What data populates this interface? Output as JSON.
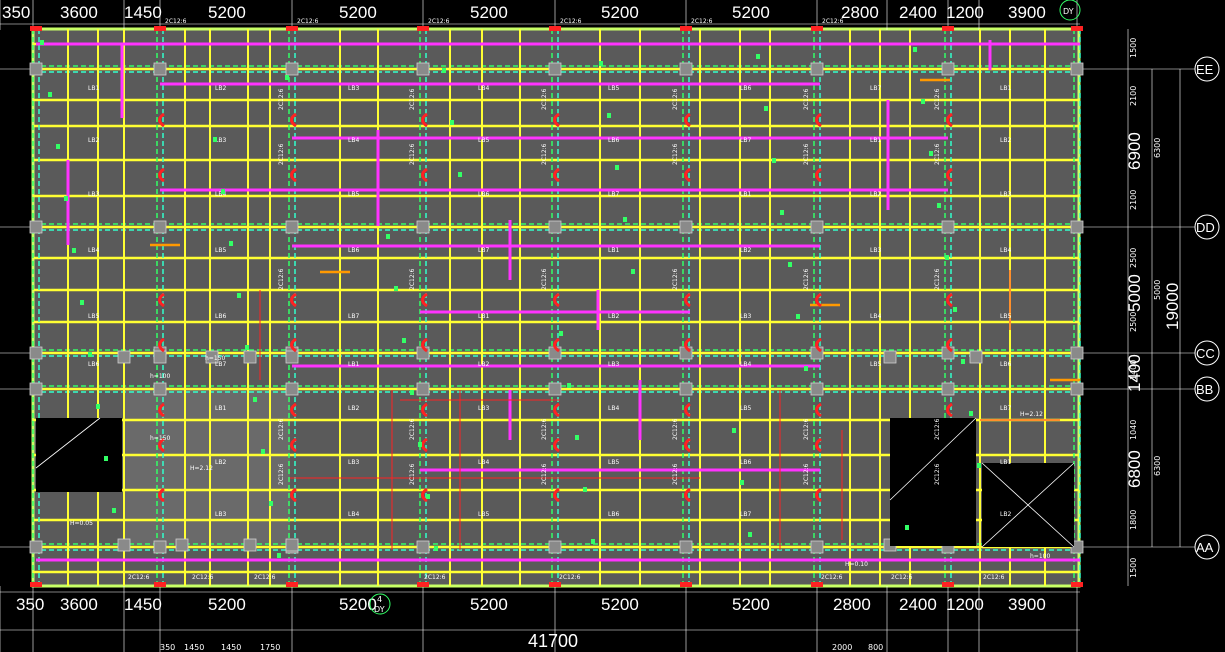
{
  "drawing": {
    "top_dims": [
      "350",
      "3600",
      "1450",
      "5200",
      "5200",
      "5200",
      "5200",
      "5200",
      "2800",
      "2400",
      "1200",
      "3900"
    ],
    "bottom_dims": [
      "350",
      "3600",
      "1450",
      "5200",
      "5200",
      "5200",
      "5200",
      "5200",
      "2800",
      "2400",
      "1200",
      "3900"
    ],
    "total_width": "41700",
    "bottom_small_dims": [
      "350",
      "1450",
      "1450",
      "1750",
      "2000",
      "800"
    ],
    "axes": [
      {
        "id": "E",
        "label": "EE"
      },
      {
        "id": "D",
        "label": "DD"
      },
      {
        "id": "C",
        "label": "CC"
      },
      {
        "id": "B",
        "label": "BB"
      },
      {
        "id": "A",
        "label": "AA"
      }
    ],
    "right_dims": [
      "6900",
      "5000",
      "19000",
      "1400",
      "6800"
    ],
    "right_small_dims": [
      "1500",
      "2100",
      "6300",
      "2100",
      "2500",
      "5000",
      "2500",
      "1400",
      "1040",
      "6300",
      "1800",
      "1500"
    ],
    "beam_tag": "2C12:6",
    "slab_tags": [
      "LB1",
      "LB2",
      "LB3",
      "LB4",
      "LB5",
      "LB6",
      "LB7"
    ],
    "thickness_tags": [
      "h=100",
      "h=150",
      "H=2.12",
      "H=0.05",
      "H=0.10"
    ],
    "axis_marker_top": "DY",
    "axis_marker_bottom_number": "4",
    "axis_marker_bottom_letter": "DY"
  },
  "colors": {
    "background": "#000000",
    "slab": "#5a5a5a",
    "beam_yellow": "#ffff33",
    "beam_magenta": "#ff33ff",
    "beam_green": "#33ff66",
    "beam_cyan": "#33ffcc",
    "column_red": "#ff2222",
    "grid": "#9a9a9a",
    "outline": "#c8ff66"
  }
}
